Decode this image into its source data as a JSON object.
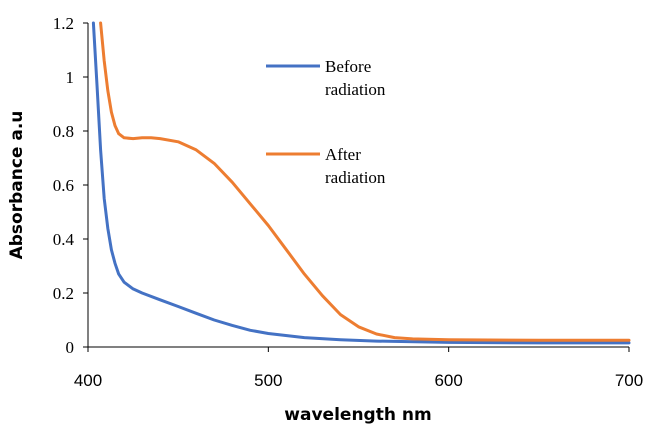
{
  "chart_data": {
    "type": "line",
    "title": "",
    "xlabel": "wavelength nm",
    "ylabel": "Absorbance a.u",
    "xlim": [
      400,
      700
    ],
    "ylim": [
      0,
      1.2
    ],
    "xticks": [
      400,
      500,
      600,
      700
    ],
    "yticks": [
      0,
      0.2,
      0.4,
      0.6,
      0.8,
      1,
      1.2
    ],
    "grid": false,
    "legend_position": "inside-top-center",
    "series": [
      {
        "name": "Before radiation",
        "color": "#4472C4",
        "x": [
          403,
          405,
          407,
          409,
          411,
          413,
          415,
          417,
          420,
          425,
          430,
          440,
          450,
          460,
          470,
          480,
          490,
          500,
          520,
          540,
          560,
          600,
          650,
          700
        ],
        "y": [
          1.2,
          0.97,
          0.73,
          0.55,
          0.44,
          0.36,
          0.31,
          0.27,
          0.24,
          0.215,
          0.2,
          0.175,
          0.15,
          0.125,
          0.1,
          0.08,
          0.062,
          0.05,
          0.035,
          0.027,
          0.022,
          0.017,
          0.015,
          0.015
        ]
      },
      {
        "name": "After radiation",
        "color": "#ED7D31",
        "x": [
          407,
          409,
          411,
          413,
          415,
          417,
          420,
          425,
          430,
          435,
          440,
          450,
          460,
          470,
          480,
          490,
          500,
          510,
          520,
          530,
          540,
          550,
          560,
          570,
          580,
          600,
          650,
          700
        ],
        "y": [
          1.2,
          1.06,
          0.95,
          0.87,
          0.82,
          0.79,
          0.775,
          0.772,
          0.775,
          0.775,
          0.772,
          0.76,
          0.73,
          0.68,
          0.61,
          0.53,
          0.45,
          0.36,
          0.27,
          0.19,
          0.12,
          0.075,
          0.048,
          0.035,
          0.03,
          0.027,
          0.025,
          0.025
        ]
      }
    ],
    "legend": [
      {
        "lines": [
          "Before",
          "radiation"
        ]
      },
      {
        "lines": [
          "After",
          "radiation"
        ]
      }
    ]
  }
}
